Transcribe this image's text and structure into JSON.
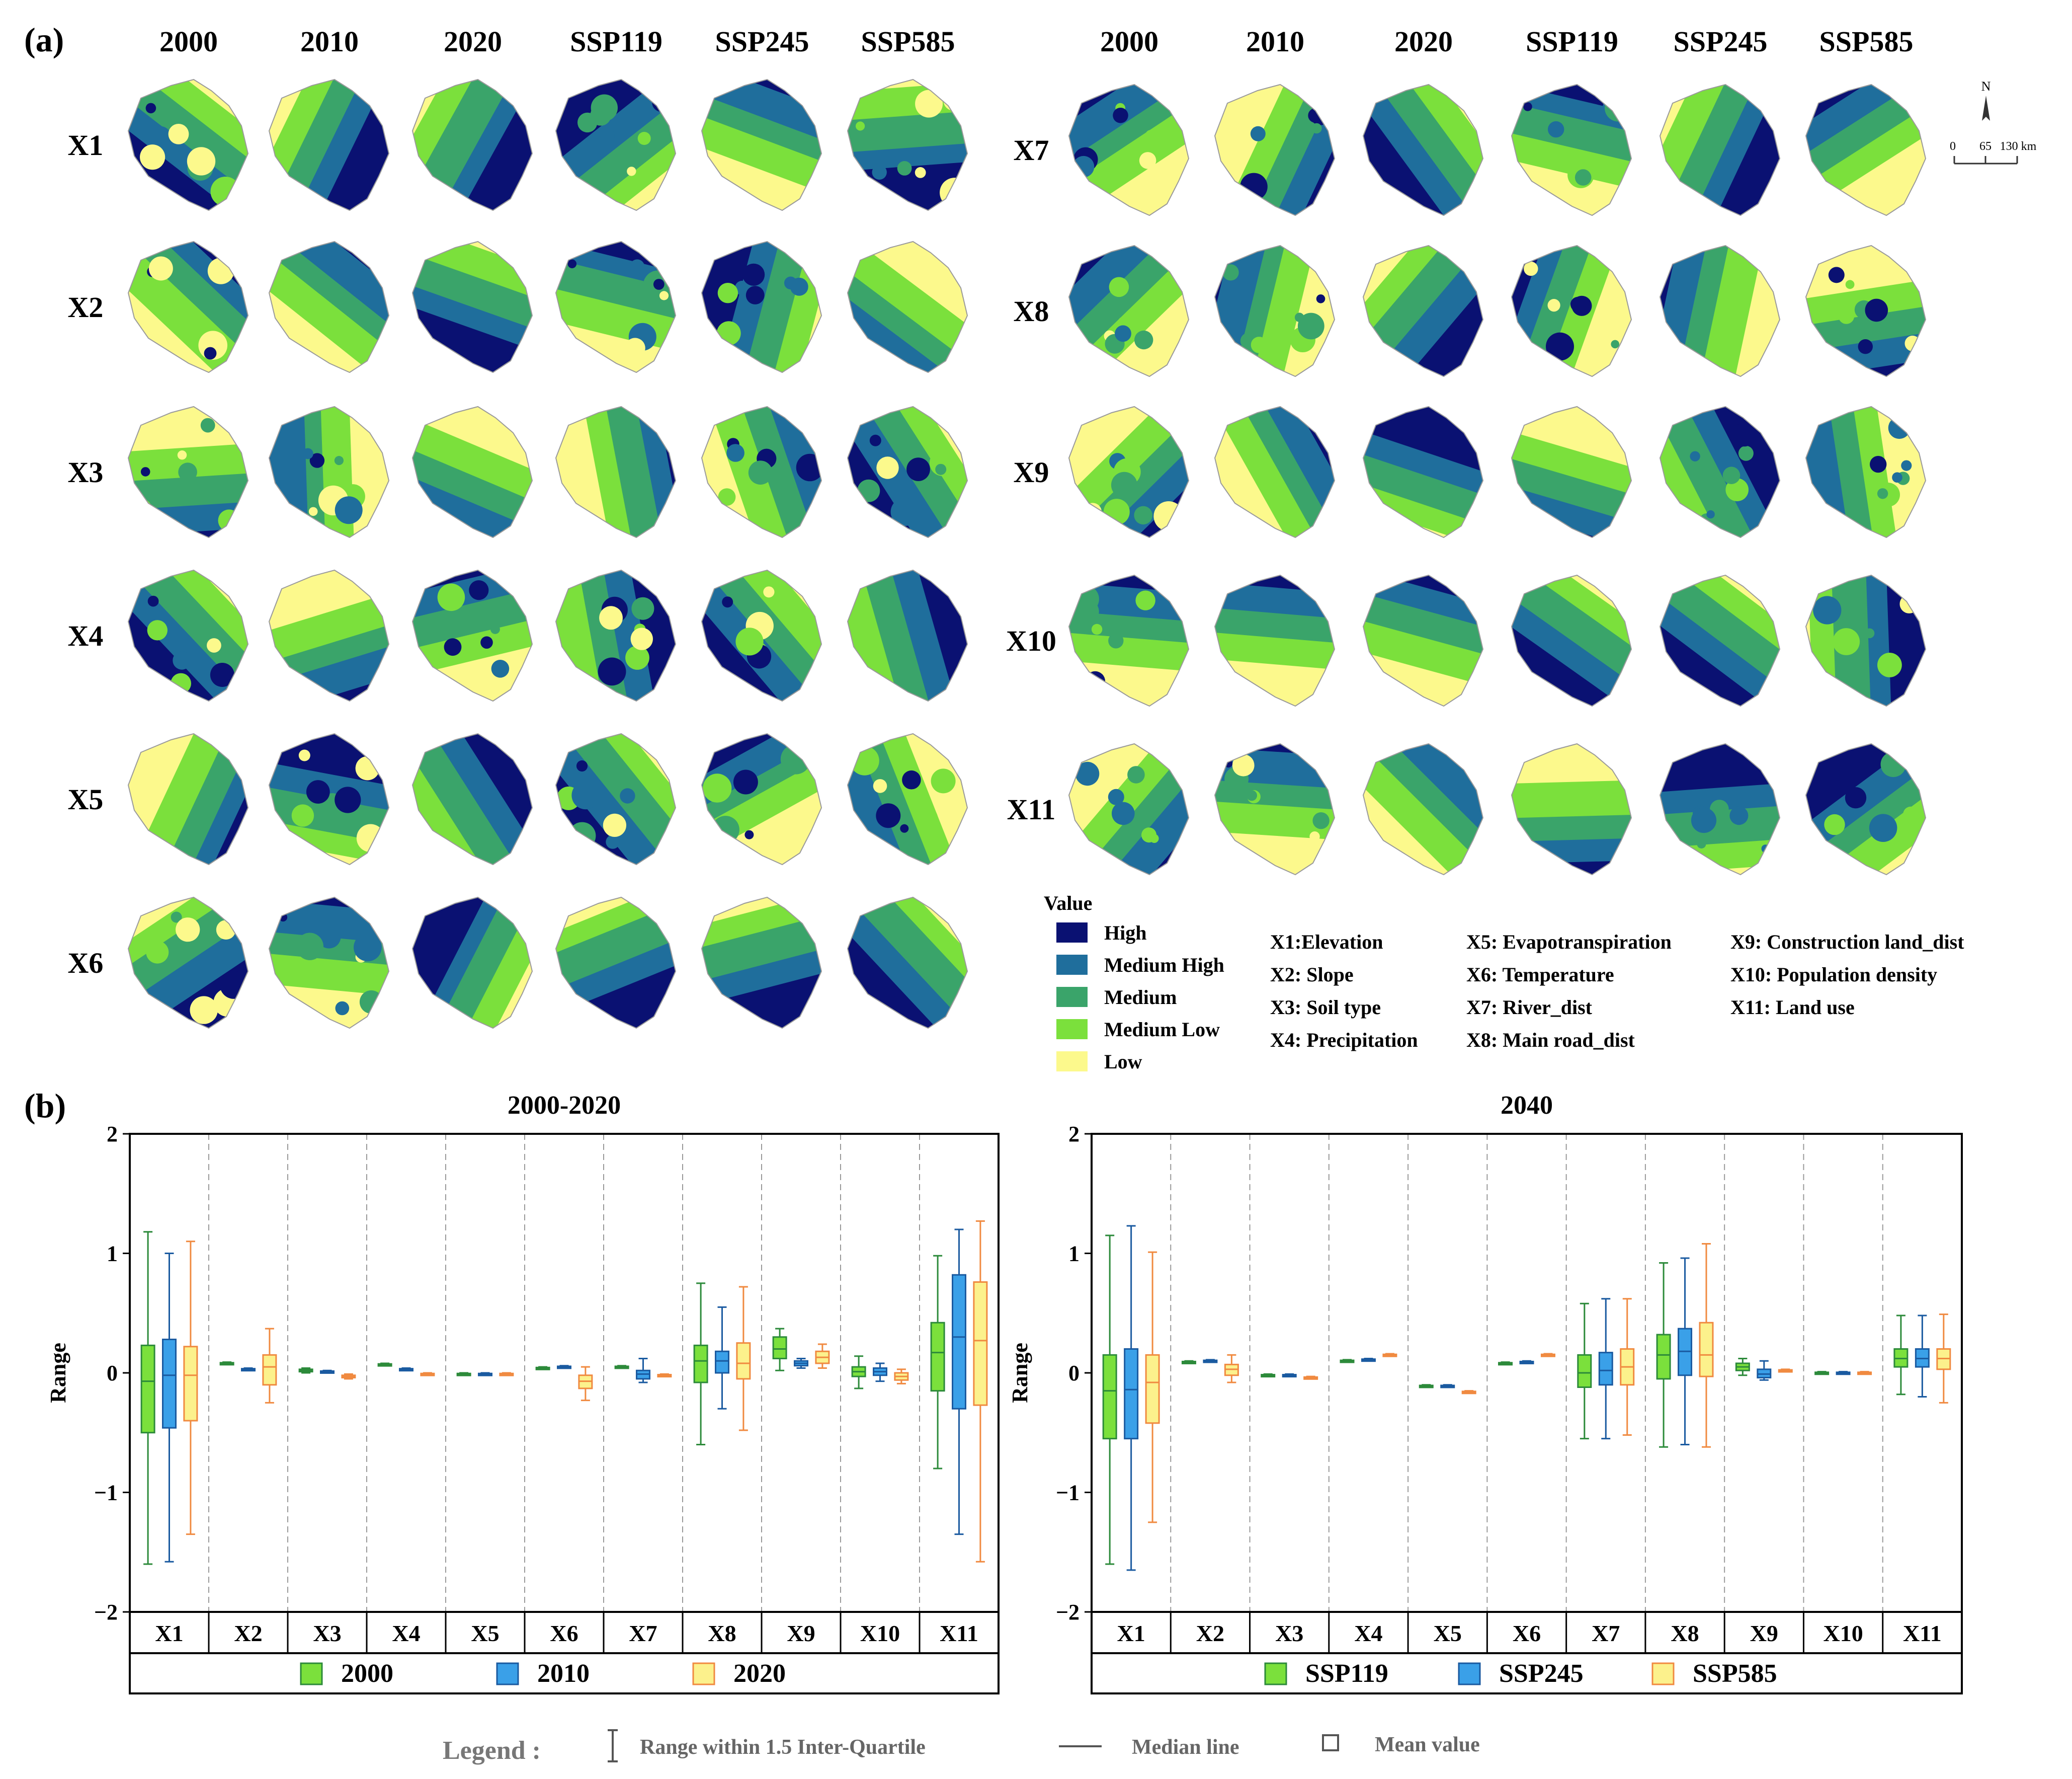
{
  "panel_a": {
    "label": "(a)",
    "columns": [
      "2000",
      "2010",
      "2020",
      "SSP119",
      "SSP245",
      "SSP585"
    ],
    "rows_left": [
      "X1",
      "X2",
      "X3",
      "X4",
      "X5",
      "X6"
    ],
    "rows_right": [
      "X7",
      "X8",
      "X9",
      "X10",
      "X11"
    ],
    "scale": {
      "north": "N",
      "ticks": [
        "0",
        "65",
        "130 km"
      ]
    },
    "legend_title": "Value",
    "classes": [
      {
        "label": "High",
        "color": "#0a1172"
      },
      {
        "label": "Medium High",
        "color": "#1f6e9c"
      },
      {
        "label": "Medium",
        "color": "#3aa46a"
      },
      {
        "label": "Medium Low",
        "color": "#7be03c"
      },
      {
        "label": "Low",
        "color": "#fcf98c"
      }
    ],
    "factor_names": [
      "X1:Elevation",
      "X2: Slope",
      "X3: Soil type",
      "X4: Precipitation",
      "X5: Evapotranspiration",
      "X6: Temperature",
      "X7: River_dist",
      "X8: Main road_dist",
      "X9: Construction land_dist",
      "X10: Population density",
      "X11: Land use"
    ]
  },
  "panel_b": {
    "label": "(b)",
    "y_label": "Range",
    "y_ticks": [
      "2",
      "1",
      "0",
      "−1",
      "−2"
    ],
    "legend_label": "Legend :",
    "legend_items": [
      "Range within 1.5 Inter-Quartile",
      "Median line",
      "Mean value"
    ]
  },
  "chart_data": [
    {
      "type": "box",
      "title": "2000-2020",
      "categories": [
        "X1",
        "X2",
        "X3",
        "X4",
        "X5",
        "X6",
        "X7",
        "X8",
        "X9",
        "X10",
        "X11"
      ],
      "ylim": [
        -2,
        2
      ],
      "ylabel": "Range",
      "series": [
        {
          "name": "2000",
          "color": "#7be03c",
          "stroke": "#2c8a3a",
          "boxes": [
            {
              "min": -1.6,
              "q1": -0.5,
              "median": -0.07,
              "q3": 0.23,
              "max": 1.18
            },
            {
              "min": 0.07,
              "q1": 0.075,
              "median": 0.08,
              "q3": 0.085,
              "max": 0.09
            },
            {
              "min": 0.0,
              "q1": 0.01,
              "median": 0.02,
              "q3": 0.03,
              "max": 0.04
            },
            {
              "min": 0.06,
              "q1": 0.065,
              "median": 0.07,
              "q3": 0.075,
              "max": 0.08
            },
            {
              "min": -0.02,
              "q1": -0.015,
              "median": -0.01,
              "q3": -0.005,
              "max": 0.0
            },
            {
              "min": 0.03,
              "q1": 0.035,
              "median": 0.04,
              "q3": 0.045,
              "max": 0.05
            },
            {
              "min": 0.04,
              "q1": 0.045,
              "median": 0.05,
              "q3": 0.055,
              "max": 0.06
            },
            {
              "min": -0.6,
              "q1": -0.08,
              "median": 0.1,
              "q3": 0.23,
              "max": 0.75
            },
            {
              "min": 0.02,
              "q1": 0.12,
              "median": 0.2,
              "q3": 0.3,
              "max": 0.37
            },
            {
              "min": -0.13,
              "q1": -0.03,
              "median": 0.01,
              "q3": 0.05,
              "max": 0.14
            },
            {
              "min": -0.8,
              "q1": -0.15,
              "median": 0.17,
              "q3": 0.42,
              "max": 0.98
            }
          ]
        },
        {
          "name": "2010",
          "color": "#3aa0e8",
          "stroke": "#1a5aa0",
          "boxes": [
            {
              "min": -1.58,
              "q1": -0.46,
              "median": -0.02,
              "q3": 0.28,
              "max": 1.0
            },
            {
              "min": 0.02,
              "q1": 0.025,
              "median": 0.03,
              "q3": 0.035,
              "max": 0.04
            },
            {
              "min": 0.0,
              "q1": 0.005,
              "median": 0.01,
              "q3": 0.015,
              "max": 0.02
            },
            {
              "min": 0.02,
              "q1": 0.025,
              "median": 0.03,
              "q3": 0.035,
              "max": 0.04
            },
            {
              "min": -0.02,
              "q1": -0.015,
              "median": -0.01,
              "q3": -0.005,
              "max": 0.0
            },
            {
              "min": 0.04,
              "q1": 0.045,
              "median": 0.05,
              "q3": 0.055,
              "max": 0.06
            },
            {
              "min": -0.08,
              "q1": -0.05,
              "median": -0.01,
              "q3": 0.02,
              "max": 0.12
            },
            {
              "min": -0.3,
              "q1": 0.0,
              "median": 0.1,
              "q3": 0.18,
              "max": 0.55
            },
            {
              "min": 0.04,
              "q1": 0.06,
              "median": 0.08,
              "q3": 0.1,
              "max": 0.12
            },
            {
              "min": -0.07,
              "q1": -0.02,
              "median": 0.01,
              "q3": 0.04,
              "max": 0.08
            },
            {
              "min": -1.35,
              "q1": -0.3,
              "median": 0.3,
              "q3": 0.82,
              "max": 1.2
            }
          ]
        },
        {
          "name": "2020",
          "color": "#fcf18c",
          "stroke": "#f08a40",
          "boxes": [
            {
              "min": -1.35,
              "q1": -0.4,
              "median": -0.02,
              "q3": 0.22,
              "max": 1.1
            },
            {
              "min": -0.25,
              "q1": -0.1,
              "median": 0.05,
              "q3": 0.15,
              "max": 0.37
            },
            {
              "min": -0.05,
              "q1": -0.04,
              "median": -0.03,
              "q3": -0.02,
              "max": -0.01
            },
            {
              "min": -0.02,
              "q1": -0.015,
              "median": -0.01,
              "q3": -0.005,
              "max": 0.0
            },
            {
              "min": -0.02,
              "q1": -0.015,
              "median": -0.01,
              "q3": -0.005,
              "max": 0.0
            },
            {
              "min": -0.23,
              "q1": -0.13,
              "median": -0.07,
              "q3": -0.02,
              "max": 0.05
            },
            {
              "min": -0.03,
              "q1": -0.025,
              "median": -0.02,
              "q3": -0.015,
              "max": -0.01
            },
            {
              "min": -0.48,
              "q1": -0.05,
              "median": 0.08,
              "q3": 0.25,
              "max": 0.72
            },
            {
              "min": 0.04,
              "q1": 0.08,
              "median": 0.13,
              "q3": 0.18,
              "max": 0.24
            },
            {
              "min": -0.09,
              "q1": -0.06,
              "median": -0.03,
              "q3": 0.0,
              "max": 0.03
            },
            {
              "min": -1.58,
              "q1": -0.27,
              "median": 0.27,
              "q3": 0.76,
              "max": 1.27
            }
          ]
        }
      ]
    },
    {
      "type": "box",
      "title": "2040",
      "categories": [
        "X1",
        "X2",
        "X3",
        "X4",
        "X5",
        "X6",
        "X7",
        "X8",
        "X9",
        "X10",
        "X11"
      ],
      "ylim": [
        -2,
        2
      ],
      "ylabel": "Range",
      "series": [
        {
          "name": "SSP119",
          "color": "#7be03c",
          "stroke": "#2c8a3a",
          "boxes": [
            {
              "min": -1.6,
              "q1": -0.55,
              "median": -0.15,
              "q3": 0.15,
              "max": 1.15
            },
            {
              "min": 0.08,
              "q1": 0.085,
              "median": 0.09,
              "q3": 0.095,
              "max": 0.1
            },
            {
              "min": -0.03,
              "q1": -0.025,
              "median": -0.02,
              "q3": -0.015,
              "max": -0.01
            },
            {
              "min": 0.09,
              "q1": 0.095,
              "median": 0.1,
              "q3": 0.105,
              "max": 0.11
            },
            {
              "min": -0.12,
              "q1": -0.115,
              "median": -0.11,
              "q3": -0.105,
              "max": -0.1
            },
            {
              "min": 0.07,
              "q1": 0.075,
              "median": 0.08,
              "q3": 0.085,
              "max": 0.09
            },
            {
              "min": -0.55,
              "q1": -0.12,
              "median": 0.0,
              "q3": 0.15,
              "max": 0.58
            },
            {
              "min": -0.62,
              "q1": -0.05,
              "median": 0.15,
              "q3": 0.32,
              "max": 0.92
            },
            {
              "min": -0.02,
              "q1": 0.02,
              "median": 0.05,
              "q3": 0.08,
              "max": 0.12
            },
            {
              "min": -0.01,
              "q1": -0.005,
              "median": 0.0,
              "q3": 0.005,
              "max": 0.01
            },
            {
              "min": -0.18,
              "q1": 0.05,
              "median": 0.12,
              "q3": 0.2,
              "max": 0.48
            }
          ]
        },
        {
          "name": "SSP245",
          "color": "#3aa0e8",
          "stroke": "#1a5aa0",
          "boxes": [
            {
              "min": -1.65,
              "q1": -0.55,
              "median": -0.14,
              "q3": 0.2,
              "max": 1.23
            },
            {
              "min": 0.09,
              "q1": 0.095,
              "median": 0.1,
              "q3": 0.105,
              "max": 0.11
            },
            {
              "min": -0.03,
              "q1": -0.025,
              "median": -0.02,
              "q3": -0.015,
              "max": -0.01
            },
            {
              "min": 0.1,
              "q1": 0.105,
              "median": 0.11,
              "q3": 0.115,
              "max": 0.12
            },
            {
              "min": -0.12,
              "q1": -0.115,
              "median": -0.11,
              "q3": -0.105,
              "max": -0.1
            },
            {
              "min": 0.08,
              "q1": 0.085,
              "median": 0.09,
              "q3": 0.095,
              "max": 0.1
            },
            {
              "min": -0.55,
              "q1": -0.1,
              "median": 0.02,
              "q3": 0.17,
              "max": 0.62
            },
            {
              "min": -0.6,
              "q1": -0.02,
              "median": 0.18,
              "q3": 0.37,
              "max": 0.96
            },
            {
              "min": -0.06,
              "q1": -0.04,
              "median": -0.01,
              "q3": 0.03,
              "max": 0.1
            },
            {
              "min": -0.01,
              "q1": -0.005,
              "median": 0.0,
              "q3": 0.005,
              "max": 0.01
            },
            {
              "min": -0.2,
              "q1": 0.05,
              "median": 0.12,
              "q3": 0.2,
              "max": 0.48
            }
          ]
        },
        {
          "name": "SSP585",
          "color": "#fcf18c",
          "stroke": "#f08a40",
          "boxes": [
            {
              "min": -1.25,
              "q1": -0.42,
              "median": -0.08,
              "q3": 0.15,
              "max": 1.01
            },
            {
              "min": -0.08,
              "q1": -0.02,
              "median": 0.03,
              "q3": 0.07,
              "max": 0.15
            },
            {
              "min": -0.05,
              "q1": -0.045,
              "median": -0.04,
              "q3": -0.035,
              "max": -0.03
            },
            {
              "min": 0.14,
              "q1": 0.145,
              "median": 0.15,
              "q3": 0.155,
              "max": 0.16
            },
            {
              "min": -0.17,
              "q1": -0.165,
              "median": -0.16,
              "q3": -0.155,
              "max": -0.15
            },
            {
              "min": 0.14,
              "q1": 0.145,
              "median": 0.15,
              "q3": 0.155,
              "max": 0.16
            },
            {
              "min": -0.52,
              "q1": -0.1,
              "median": 0.05,
              "q3": 0.2,
              "max": 0.62
            },
            {
              "min": -0.62,
              "q1": -0.03,
              "median": 0.15,
              "q3": 0.42,
              "max": 1.08
            },
            {
              "min": 0.01,
              "q1": 0.015,
              "median": 0.02,
              "q3": 0.025,
              "max": 0.03
            },
            {
              "min": -0.01,
              "q1": -0.005,
              "median": 0.0,
              "q3": 0.005,
              "max": 0.01
            },
            {
              "min": -0.25,
              "q1": 0.03,
              "median": 0.12,
              "q3": 0.2,
              "max": 0.49
            }
          ]
        }
      ]
    }
  ]
}
